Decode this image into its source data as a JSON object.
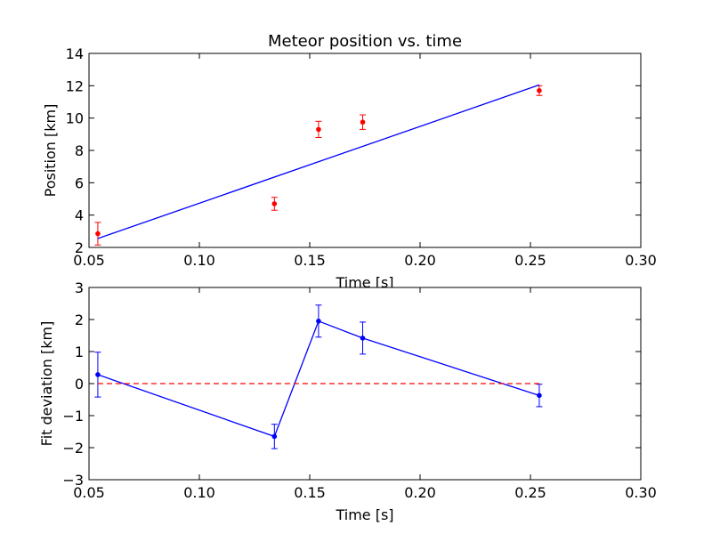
{
  "chart_data": [
    {
      "type": "scatter",
      "title": "Meteor position vs. time",
      "xlabel": "Time [s]",
      "ylabel": "Position [km]",
      "xlim": [
        0.05,
        0.3
      ],
      "ylim": [
        2,
        14
      ],
      "xticks": [
        "0.05",
        "0.10",
        "0.15",
        "0.20",
        "0.25",
        "0.30"
      ],
      "yticks": [
        "2",
        "4",
        "6",
        "8",
        "10",
        "12",
        "14"
      ],
      "grid": false,
      "series": [
        {
          "kind": "errorbar",
          "color": "#ff0000",
          "x": [
            0.054,
            0.134,
            0.154,
            0.174,
            0.254
          ],
          "y": [
            2.85,
            4.7,
            9.3,
            9.75,
            11.7
          ],
          "yerr": [
            0.7,
            0.4,
            0.5,
            0.45,
            0.3
          ]
        },
        {
          "kind": "line",
          "color": "#0000ff",
          "x": [
            0.054,
            0.254
          ],
          "y": [
            2.55,
            12.05
          ]
        }
      ]
    },
    {
      "type": "line",
      "title": "",
      "xlabel": "Time [s]",
      "ylabel": "Fit deviation [km]",
      "xlim": [
        0.05,
        0.3
      ],
      "ylim": [
        -3,
        3
      ],
      "xticks": [
        "0.05",
        "0.10",
        "0.15",
        "0.20",
        "0.25",
        "0.30"
      ],
      "yticks": [
        "−3",
        "−2",
        "−1",
        "0",
        "1",
        "2",
        "3"
      ],
      "grid": false,
      "series": [
        {
          "kind": "line-errorbar",
          "color": "#0000ff",
          "x": [
            0.054,
            0.134,
            0.154,
            0.174,
            0.254
          ],
          "y": [
            0.28,
            -1.65,
            1.95,
            1.42,
            -0.37
          ],
          "yerr": [
            0.7,
            0.38,
            0.5,
            0.5,
            0.35
          ]
        },
        {
          "kind": "reference-line",
          "color": "#ff0000",
          "style": "dashed",
          "x": [
            0.054,
            0.254
          ],
          "y": [
            0,
            0
          ]
        }
      ]
    }
  ]
}
